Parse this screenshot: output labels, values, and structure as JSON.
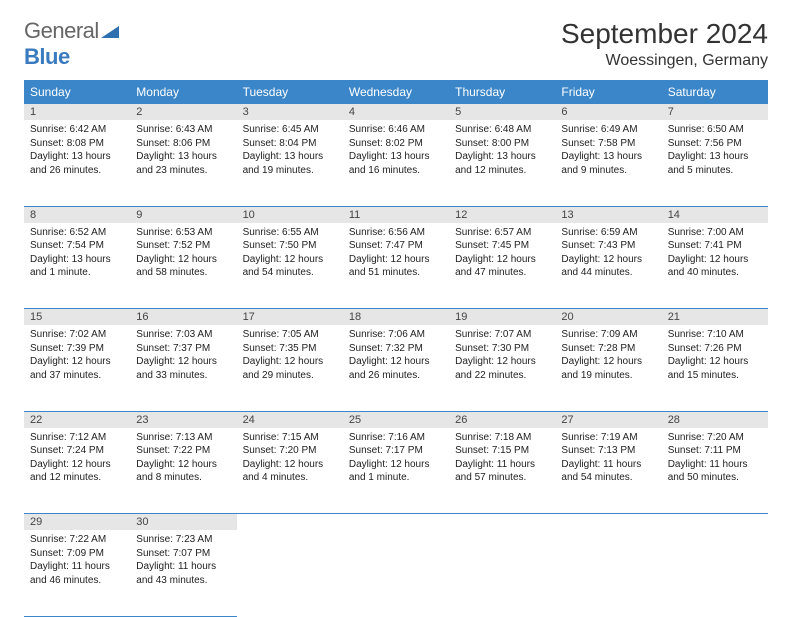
{
  "brand": {
    "part1": "General",
    "part2": "Blue"
  },
  "title": "September 2024",
  "location": "Woessingen, Germany",
  "header_bg": "#3a86c8",
  "daynum_bg": "#e6e6e6",
  "border_color": "#3a86c8",
  "weekdays": [
    "Sunday",
    "Monday",
    "Tuesday",
    "Wednesday",
    "Thursday",
    "Friday",
    "Saturday"
  ],
  "weeks": [
    [
      {
        "n": "1",
        "sr": "Sunrise: 6:42 AM",
        "ss": "Sunset: 8:08 PM",
        "dl": "Daylight: 13 hours and 26 minutes."
      },
      {
        "n": "2",
        "sr": "Sunrise: 6:43 AM",
        "ss": "Sunset: 8:06 PM",
        "dl": "Daylight: 13 hours and 23 minutes."
      },
      {
        "n": "3",
        "sr": "Sunrise: 6:45 AM",
        "ss": "Sunset: 8:04 PM",
        "dl": "Daylight: 13 hours and 19 minutes."
      },
      {
        "n": "4",
        "sr": "Sunrise: 6:46 AM",
        "ss": "Sunset: 8:02 PM",
        "dl": "Daylight: 13 hours and 16 minutes."
      },
      {
        "n": "5",
        "sr": "Sunrise: 6:48 AM",
        "ss": "Sunset: 8:00 PM",
        "dl": "Daylight: 13 hours and 12 minutes."
      },
      {
        "n": "6",
        "sr": "Sunrise: 6:49 AM",
        "ss": "Sunset: 7:58 PM",
        "dl": "Daylight: 13 hours and 9 minutes."
      },
      {
        "n": "7",
        "sr": "Sunrise: 6:50 AM",
        "ss": "Sunset: 7:56 PM",
        "dl": "Daylight: 13 hours and 5 minutes."
      }
    ],
    [
      {
        "n": "8",
        "sr": "Sunrise: 6:52 AM",
        "ss": "Sunset: 7:54 PM",
        "dl": "Daylight: 13 hours and 1 minute."
      },
      {
        "n": "9",
        "sr": "Sunrise: 6:53 AM",
        "ss": "Sunset: 7:52 PM",
        "dl": "Daylight: 12 hours and 58 minutes."
      },
      {
        "n": "10",
        "sr": "Sunrise: 6:55 AM",
        "ss": "Sunset: 7:50 PM",
        "dl": "Daylight: 12 hours and 54 minutes."
      },
      {
        "n": "11",
        "sr": "Sunrise: 6:56 AM",
        "ss": "Sunset: 7:47 PM",
        "dl": "Daylight: 12 hours and 51 minutes."
      },
      {
        "n": "12",
        "sr": "Sunrise: 6:57 AM",
        "ss": "Sunset: 7:45 PM",
        "dl": "Daylight: 12 hours and 47 minutes."
      },
      {
        "n": "13",
        "sr": "Sunrise: 6:59 AM",
        "ss": "Sunset: 7:43 PM",
        "dl": "Daylight: 12 hours and 44 minutes."
      },
      {
        "n": "14",
        "sr": "Sunrise: 7:00 AM",
        "ss": "Sunset: 7:41 PM",
        "dl": "Daylight: 12 hours and 40 minutes."
      }
    ],
    [
      {
        "n": "15",
        "sr": "Sunrise: 7:02 AM",
        "ss": "Sunset: 7:39 PM",
        "dl": "Daylight: 12 hours and 37 minutes."
      },
      {
        "n": "16",
        "sr": "Sunrise: 7:03 AM",
        "ss": "Sunset: 7:37 PM",
        "dl": "Daylight: 12 hours and 33 minutes."
      },
      {
        "n": "17",
        "sr": "Sunrise: 7:05 AM",
        "ss": "Sunset: 7:35 PM",
        "dl": "Daylight: 12 hours and 29 minutes."
      },
      {
        "n": "18",
        "sr": "Sunrise: 7:06 AM",
        "ss": "Sunset: 7:32 PM",
        "dl": "Daylight: 12 hours and 26 minutes."
      },
      {
        "n": "19",
        "sr": "Sunrise: 7:07 AM",
        "ss": "Sunset: 7:30 PM",
        "dl": "Daylight: 12 hours and 22 minutes."
      },
      {
        "n": "20",
        "sr": "Sunrise: 7:09 AM",
        "ss": "Sunset: 7:28 PM",
        "dl": "Daylight: 12 hours and 19 minutes."
      },
      {
        "n": "21",
        "sr": "Sunrise: 7:10 AM",
        "ss": "Sunset: 7:26 PM",
        "dl": "Daylight: 12 hours and 15 minutes."
      }
    ],
    [
      {
        "n": "22",
        "sr": "Sunrise: 7:12 AM",
        "ss": "Sunset: 7:24 PM",
        "dl": "Daylight: 12 hours and 12 minutes."
      },
      {
        "n": "23",
        "sr": "Sunrise: 7:13 AM",
        "ss": "Sunset: 7:22 PM",
        "dl": "Daylight: 12 hours and 8 minutes."
      },
      {
        "n": "24",
        "sr": "Sunrise: 7:15 AM",
        "ss": "Sunset: 7:20 PM",
        "dl": "Daylight: 12 hours and 4 minutes."
      },
      {
        "n": "25",
        "sr": "Sunrise: 7:16 AM",
        "ss": "Sunset: 7:17 PM",
        "dl": "Daylight: 12 hours and 1 minute."
      },
      {
        "n": "26",
        "sr": "Sunrise: 7:18 AM",
        "ss": "Sunset: 7:15 PM",
        "dl": "Daylight: 11 hours and 57 minutes."
      },
      {
        "n": "27",
        "sr": "Sunrise: 7:19 AM",
        "ss": "Sunset: 7:13 PM",
        "dl": "Daylight: 11 hours and 54 minutes."
      },
      {
        "n": "28",
        "sr": "Sunrise: 7:20 AM",
        "ss": "Sunset: 7:11 PM",
        "dl": "Daylight: 11 hours and 50 minutes."
      }
    ],
    [
      {
        "n": "29",
        "sr": "Sunrise: 7:22 AM",
        "ss": "Sunset: 7:09 PM",
        "dl": "Daylight: 11 hours and 46 minutes."
      },
      {
        "n": "30",
        "sr": "Sunrise: 7:23 AM",
        "ss": "Sunset: 7:07 PM",
        "dl": "Daylight: 11 hours and 43 minutes."
      },
      null,
      null,
      null,
      null,
      null
    ]
  ]
}
